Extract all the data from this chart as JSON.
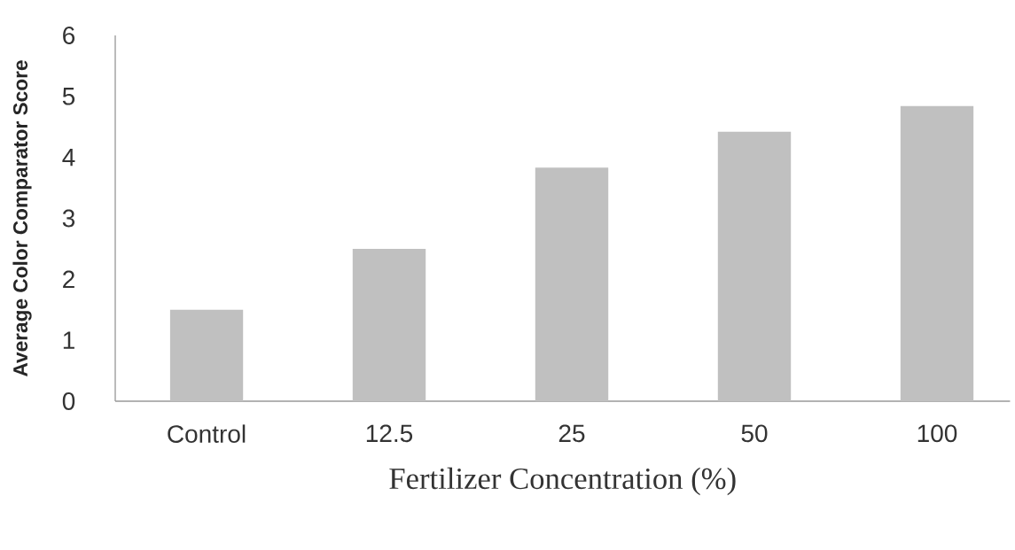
{
  "chart_data": {
    "type": "bar",
    "xlabel": "Fertilizer Concentration (%)",
    "ylabel": "Average Color Comparator Score",
    "categories": [
      "Control",
      "12.5",
      "25",
      "50",
      "100"
    ],
    "values": [
      1.5,
      2.5,
      3.83,
      4.42,
      4.84
    ],
    "color": "#c0c0c0",
    "ylim": [
      0,
      6
    ],
    "yticks": [
      0,
      1,
      2,
      3,
      4,
      5,
      6
    ]
  }
}
